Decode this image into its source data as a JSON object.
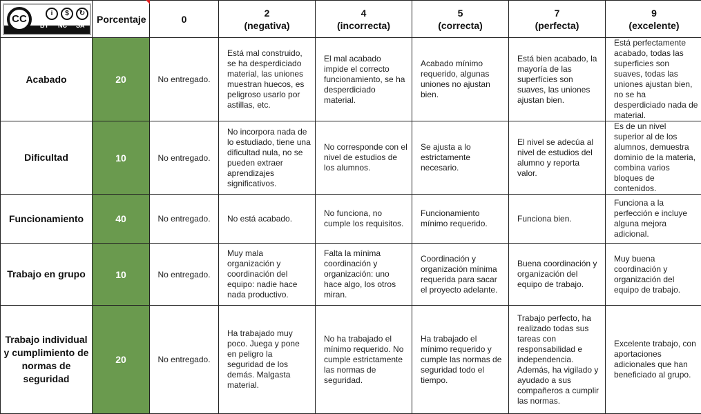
{
  "license": {
    "logo_text": "CC",
    "badges": [
      "BY",
      "NC",
      "SA"
    ]
  },
  "header": {
    "porcentaje": "Porcentaje",
    "levels": [
      {
        "score": "0",
        "name": ""
      },
      {
        "score": "2",
        "name": "(negativa)"
      },
      {
        "score": "4",
        "name": "(incorrecta)"
      },
      {
        "score": "5",
        "name": "(correcta)"
      },
      {
        "score": "7",
        "name": "(perfecta)"
      },
      {
        "score": "9",
        "name": "(excelente)"
      }
    ]
  },
  "colors": {
    "percent_fill": "#6a9a4e"
  },
  "rows": [
    {
      "criterion": "Acabado",
      "percent": "20",
      "cells": [
        "No entregado.",
        "Está mal construido, se ha desperdiciado material, las  uniones muestran huecos, es peligroso usarlo por astillas, etc.",
        "El mal acabado impide el correcto funcionamiento, se ha desperdiciado material.",
        "Acabado mínimo requerido, algunas uniones no ajustan bien.",
        "Está bien acabado, la mayoría de las superfícies son suaves, las uniones ajustan bien.",
        "Está perfectamente acabado, todas las superficies son suaves, todas las uniones ajustan bien, no se ha desperdiciado nada de material."
      ]
    },
    {
      "criterion": "Dificultad",
      "percent": "10",
      "cells": [
        "No entregado.",
        "No incorpora nada de lo estudiado, tiene una dificultad nula, no se pueden extraer aprendizajes significativos.",
        "No corresponde con el nivel de estudios de los alumnos.",
        "Se ajusta a lo estrictamente necesario.",
        "El nivel se adecúa al nivel de estudios del alumno y reporta valor.",
        "Es de un nivel superior al de los alumnos, demuestra dominio de la materia, combina varios bloques de contenidos."
      ]
    },
    {
      "criterion": "Funcionamiento",
      "percent": "40",
      "cells": [
        "No entregado.",
        "No está acabado.",
        "No funciona, no cumple los requisitos.",
        "Funcionamiento mínimo requerido.",
        "Funciona bien.",
        "Funciona a la perfección e incluye alguna mejora adicional."
      ]
    },
    {
      "criterion": "Trabajo en grupo",
      "percent": "10",
      "cells": [
        "No entregado.",
        "Muy mala organización y coordinación del equipo: nadie hace nada productivo.",
        "Falta la mínima coordinación y organización: uno hace algo, los otros miran.",
        "Coordinación y organización mínima requerida para sacar el proyecto adelante.",
        "Buena coordinación y organización del equipo de trabajo.",
        "Muy buena coordinación y organización del equipo de trabajo."
      ]
    },
    {
      "criterion": "Trabajo individual y cumplimiento de normas de seguridad",
      "percent": "20",
      "cells": [
        "No entregado.",
        "Ha trabajado muy poco. Juega y pone en peligro la seguridad de los demás. Malgasta material.",
        "No ha trabajado el mínimo requerido. No cumple estrictamente las normas de seguridad.",
        "Ha trabajado el mínimo requerido y cumple las normas de seguridad todo el tiempo.",
        "Trabajo perfecto, ha realizado todas sus tareas con responsabilidad e independencia. Además, ha vigilado y ayudado a sus compañeros a cumplir las normas.",
        "Excelente trabajo, con aportaciones adicionales que han beneficiado al grupo."
      ]
    }
  ]
}
